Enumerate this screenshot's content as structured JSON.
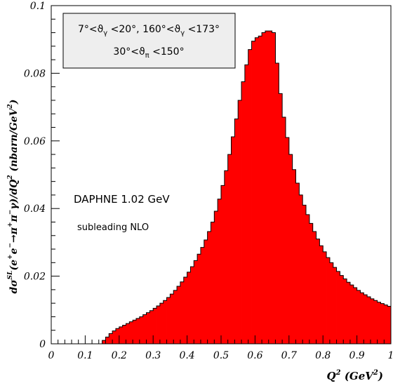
{
  "chart_data": {
    "type": "bar",
    "subtype": "histogram",
    "xlabel_main": "Q",
    "xlabel_sup": "2",
    "xlabel_unit_pre": "(GeV",
    "xlabel_unit_sup": "2",
    "xlabel_unit_post": ")",
    "ylabel_text": "dσ^SL(e^+e^- → π^+π^-γ)/dQ^2 (nbarn/GeV^2)",
    "y_label_parts": {
      "a": "dσ",
      "a_sup": "SL",
      "b": "(e",
      "b_sup": "+",
      "c": "e",
      "c_sup": "−",
      "d": "→π",
      "d_sup": "+",
      "e": "π",
      "e_sup": "−",
      "f": "γ)/dQ",
      "f_sup": "2",
      "g": " (nbarn/GeV",
      "g_sup": "2",
      "h": ")"
    },
    "xlim": [
      0,
      1.0
    ],
    "ylim": [
      0,
      0.1
    ],
    "x_ticks": [
      "0",
      "0.1",
      "0.2",
      "0.3",
      "0.4",
      "0.5",
      "0.6",
      "0.7",
      "0.8",
      "0.9",
      "1"
    ],
    "y_ticks": [
      "0",
      "0.02",
      "0.04",
      "0.06",
      "0.08",
      "0.1"
    ],
    "fill_color": "#ff0000",
    "edge_color": "#000000",
    "bin_width": 0.01,
    "bins_start": 0.15,
    "values": [
      0.001,
      0.002,
      0.003,
      0.0038,
      0.0045,
      0.005,
      0.0055,
      0.006,
      0.0065,
      0.007,
      0.0075,
      0.008,
      0.0086,
      0.0092,
      0.0098,
      0.0105,
      0.0112,
      0.012,
      0.0128,
      0.0137,
      0.0147,
      0.0158,
      0.017,
      0.0183,
      0.0197,
      0.0212,
      0.0228,
      0.0246,
      0.0265,
      0.0285,
      0.0307,
      0.0332,
      0.036,
      0.0392,
      0.0428,
      0.0468,
      0.0512,
      0.056,
      0.0612,
      0.0665,
      0.072,
      0.0775,
      0.0825,
      0.087,
      0.0895,
      0.0905,
      0.091,
      0.092,
      0.0925,
      0.0925,
      0.092,
      0.083,
      0.074,
      0.067,
      0.061,
      0.056,
      0.0515,
      0.0475,
      0.044,
      0.041,
      0.0382,
      0.0356,
      0.0332,
      0.031,
      0.029,
      0.0272,
      0.0255,
      0.024,
      0.0226,
      0.0214,
      0.0202,
      0.0192,
      0.0182,
      0.0174,
      0.0166,
      0.0158,
      0.0151,
      0.0145,
      0.0139,
      0.0133,
      0.0128,
      0.0123,
      0.0119,
      0.0115,
      0.0111
    ]
  },
  "legend_box": {
    "line1": "7°<ϑ",
    "line1_sub": "γ",
    "line1b": " <20°, 160°<ϑ",
    "line1b_sub": "γ",
    "line1c": " <173°",
    "line2": "30°<ϑ",
    "line2_sub": "π",
    "line2b": " <150°"
  },
  "annotations": {
    "main": "DAPHNE 1.02 GeV",
    "sub": "subleading NLO"
  }
}
